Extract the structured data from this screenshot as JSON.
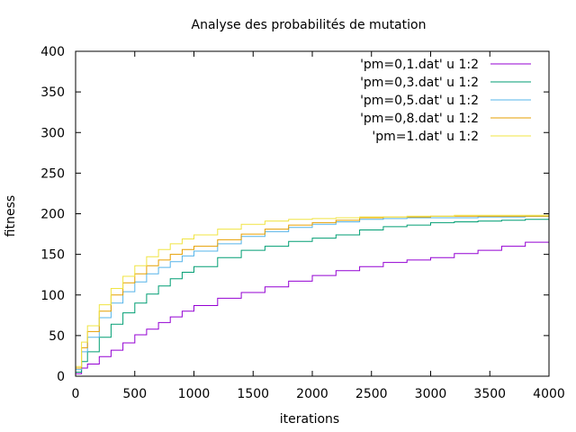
{
  "chart_data": {
    "type": "line",
    "title": "Analyse des probabilités de mutation",
    "xlabel": "iterations",
    "ylabel": "fitness",
    "xlim": [
      0,
      4000
    ],
    "ylim": [
      0,
      400
    ],
    "xticks": [
      0,
      500,
      1000,
      1500,
      2000,
      2500,
      3000,
      3500,
      4000
    ],
    "yticks": [
      0,
      50,
      100,
      150,
      200,
      250,
      300,
      350,
      400
    ],
    "grid": false,
    "legend_position": "top-right",
    "series": [
      {
        "name": "'pm=0,1.dat' u 1:2",
        "color": "#9400d3",
        "x": [
          0,
          50,
          100,
          200,
          300,
          400,
          500,
          600,
          700,
          800,
          900,
          1000,
          1200,
          1400,
          1600,
          1800,
          2000,
          2200,
          2400,
          2600,
          2800,
          3000,
          3200,
          3400,
          3600,
          3800,
          4000
        ],
        "y": [
          3,
          10,
          15,
          24,
          32,
          41,
          51,
          58,
          66,
          73,
          80,
          87,
          96,
          103,
          110,
          117,
          124,
          130,
          135,
          140,
          143,
          146,
          151,
          155,
          160,
          165,
          171
        ]
      },
      {
        "name": "'pm=0,3.dat' u 1:2",
        "color": "#009e73",
        "x": [
          0,
          50,
          100,
          200,
          300,
          400,
          500,
          600,
          700,
          800,
          900,
          1000,
          1200,
          1400,
          1600,
          1800,
          2000,
          2200,
          2400,
          2600,
          2800,
          3000,
          3200,
          3400,
          3600,
          3800,
          4000
        ],
        "y": [
          5,
          18,
          30,
          48,
          64,
          78,
          90,
          101,
          111,
          120,
          128,
          135,
          146,
          155,
          160,
          166,
          170,
          174,
          180,
          184,
          186,
          189,
          190,
          191,
          192,
          193,
          193
        ]
      },
      {
        "name": "'pm=0,5.dat' u 1:2",
        "color": "#56b4e9",
        "x": [
          0,
          50,
          100,
          200,
          300,
          400,
          500,
          600,
          700,
          800,
          900,
          1000,
          1200,
          1400,
          1600,
          1800,
          2000,
          2200,
          2400,
          2600,
          2800,
          3000,
          3200,
          3400,
          3600,
          3800,
          4000
        ],
        "y": [
          8,
          30,
          48,
          72,
          90,
          104,
          116,
          126,
          134,
          141,
          148,
          154,
          163,
          172,
          178,
          183,
          187,
          190,
          193,
          194,
          195,
          195,
          195,
          196,
          196,
          197,
          197
        ]
      },
      {
        "name": "'pm=0,8.dat' u 1:2",
        "color": "#e69f00",
        "x": [
          0,
          50,
          100,
          200,
          300,
          400,
          500,
          600,
          700,
          800,
          900,
          1000,
          1200,
          1400,
          1600,
          1800,
          2000,
          2200,
          2400,
          2600,
          2800,
          3000,
          3200,
          3400,
          3600,
          3800,
          4000
        ],
        "y": [
          10,
          35,
          55,
          80,
          100,
          115,
          126,
          136,
          143,
          150,
          156,
          160,
          168,
          175,
          181,
          186,
          189,
          192,
          195,
          196,
          196,
          197,
          197,
          197,
          197,
          197,
          197
        ]
      },
      {
        "name": "'pm=1.dat' u 1:2",
        "color": "#f0e442",
        "x": [
          0,
          50,
          100,
          200,
          300,
          400,
          500,
          600,
          700,
          800,
          900,
          1000,
          1200,
          1400,
          1600,
          1800,
          2000,
          2200,
          2400,
          2600,
          2800,
          3000,
          3200,
          3400,
          3600,
          3800,
          4000
        ],
        "y": [
          12,
          42,
          62,
          88,
          108,
          123,
          136,
          147,
          156,
          163,
          169,
          174,
          181,
          187,
          191,
          193,
          194,
          195,
          196,
          196,
          197,
          197,
          198,
          198,
          198,
          198,
          199
        ]
      }
    ]
  }
}
